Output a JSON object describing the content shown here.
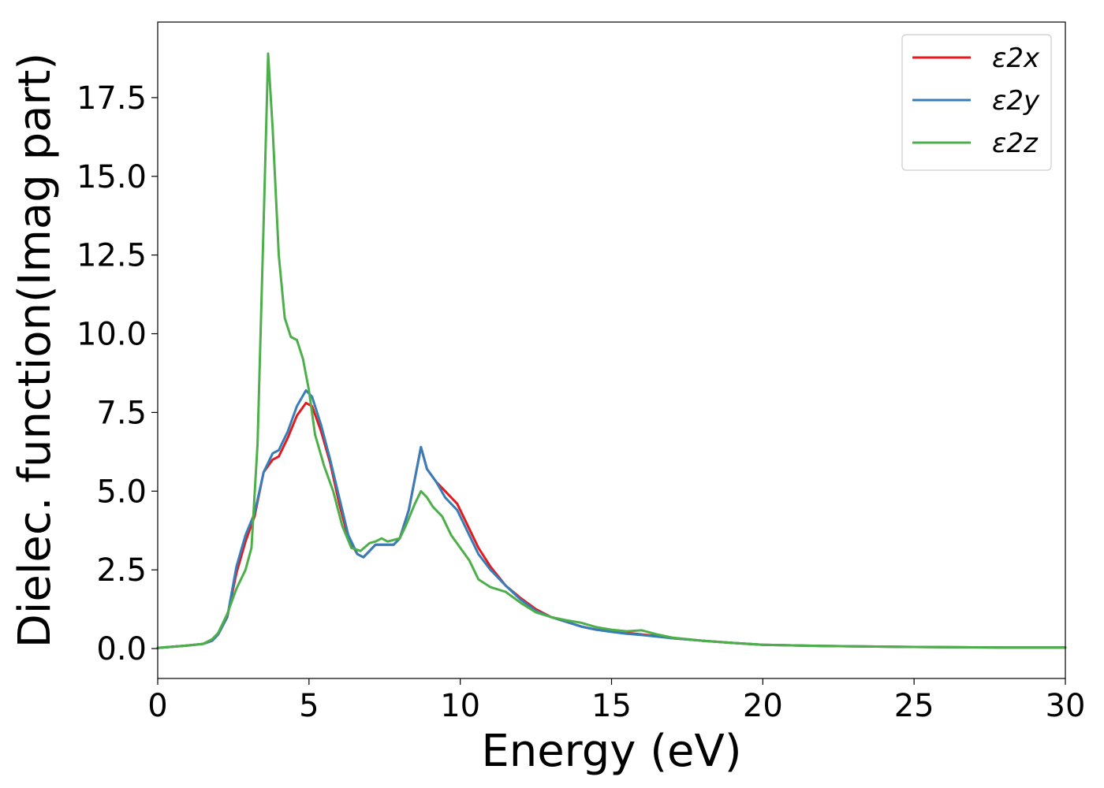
{
  "chart_data": {
    "type": "line",
    "xlabel": "Energy (eV)",
    "ylabel": "Dielec. function(Imag part)",
    "xlim": [
      0,
      30
    ],
    "ylim": [
      -0.95,
      19.9
    ],
    "xticks": [
      "0",
      "5",
      "10",
      "15",
      "20",
      "25",
      "30"
    ],
    "yticks": [
      "0.0",
      "2.5",
      "5.0",
      "7.5",
      "10.0",
      "12.5",
      "15.0",
      "17.5"
    ],
    "grid": false,
    "legend_position": "top-right",
    "series": [
      {
        "name": "ε2x",
        "color": "#e41a1c",
        "x": [
          0,
          1,
          1.5,
          1.8,
          2.0,
          2.3,
          2.6,
          2.9,
          3.2,
          3.5,
          3.8,
          4.0,
          4.3,
          4.6,
          4.9,
          5.1,
          5.4,
          5.7,
          6.0,
          6.3,
          6.6,
          6.8,
          7.0,
          7.2,
          7.5,
          7.8,
          8.0,
          8.3,
          8.6,
          8.7,
          8.9,
          9.2,
          9.5,
          9.9,
          10.2,
          10.6,
          11.0,
          11.5,
          12.0,
          12.5,
          13.0,
          13.5,
          14.0,
          14.5,
          15.0,
          15.5,
          16.0,
          16.5,
          17.0,
          18.0,
          19.0,
          20.0,
          22.0,
          25.0,
          28.0,
          30.0
        ],
        "y": [
          0.02,
          0.1,
          0.15,
          0.25,
          0.45,
          1.0,
          2.4,
          3.4,
          4.2,
          5.6,
          6.0,
          6.1,
          6.7,
          7.4,
          7.8,
          7.7,
          6.9,
          5.9,
          4.6,
          3.5,
          3.0,
          2.9,
          3.1,
          3.3,
          3.3,
          3.3,
          3.5,
          4.4,
          5.9,
          6.4,
          5.7,
          5.3,
          5.0,
          4.6,
          4.0,
          3.2,
          2.6,
          2.0,
          1.6,
          1.25,
          1.0,
          0.85,
          0.7,
          0.6,
          0.55,
          0.5,
          0.45,
          0.4,
          0.33,
          0.25,
          0.18,
          0.12,
          0.08,
          0.05,
          0.03,
          0.03
        ]
      },
      {
        "name": "ε2y",
        "color": "#377eb8",
        "x": [
          0,
          1,
          1.5,
          1.8,
          2.0,
          2.3,
          2.6,
          2.9,
          3.2,
          3.5,
          3.8,
          4.0,
          4.3,
          4.6,
          4.9,
          5.1,
          5.4,
          5.7,
          6.0,
          6.3,
          6.6,
          6.8,
          7.0,
          7.2,
          7.5,
          7.8,
          8.0,
          8.3,
          8.6,
          8.7,
          8.9,
          9.2,
          9.5,
          9.9,
          10.2,
          10.6,
          11.0,
          11.5,
          12.0,
          12.5,
          13.0,
          13.5,
          14.0,
          14.5,
          15.0,
          15.5,
          16.0,
          16.5,
          17.0,
          18.0,
          19.0,
          20.0,
          22.0,
          25.0,
          28.0,
          30.0
        ],
        "y": [
          0.02,
          0.1,
          0.15,
          0.25,
          0.45,
          1.0,
          2.6,
          3.6,
          4.3,
          5.6,
          6.2,
          6.3,
          6.9,
          7.7,
          8.2,
          8.0,
          7.1,
          6.0,
          4.8,
          3.6,
          3.0,
          2.9,
          3.1,
          3.3,
          3.3,
          3.3,
          3.5,
          4.4,
          5.9,
          6.4,
          5.7,
          5.3,
          4.8,
          4.4,
          3.8,
          3.0,
          2.5,
          2.0,
          1.55,
          1.2,
          1.0,
          0.85,
          0.7,
          0.6,
          0.53,
          0.47,
          0.43,
          0.38,
          0.33,
          0.25,
          0.18,
          0.12,
          0.08,
          0.05,
          0.03,
          0.03
        ]
      },
      {
        "name": "ε2z",
        "color": "#4daf4a",
        "x": [
          0,
          1,
          1.5,
          1.8,
          2.0,
          2.3,
          2.6,
          2.9,
          3.1,
          3.3,
          3.5,
          3.65,
          3.8,
          4.0,
          4.2,
          4.4,
          4.6,
          4.8,
          5.0,
          5.2,
          5.5,
          5.8,
          6.1,
          6.4,
          6.7,
          7.0,
          7.2,
          7.4,
          7.6,
          7.8,
          8.0,
          8.2,
          8.5,
          8.7,
          8.9,
          9.1,
          9.4,
          9.7,
          10.0,
          10.3,
          10.6,
          11.0,
          11.5,
          12.0,
          12.5,
          13.0,
          13.5,
          14.0,
          14.5,
          15.0,
          15.5,
          16.0,
          16.5,
          17.0,
          18.0,
          19.0,
          20.0,
          22.0,
          25.0,
          28.0,
          30.0
        ],
        "y": [
          0.02,
          0.1,
          0.15,
          0.3,
          0.5,
          1.1,
          1.9,
          2.5,
          3.2,
          6.5,
          13.5,
          18.9,
          16.5,
          12.5,
          10.5,
          9.9,
          9.8,
          9.2,
          8.2,
          6.8,
          5.8,
          5.0,
          3.9,
          3.2,
          3.1,
          3.35,
          3.4,
          3.5,
          3.4,
          3.45,
          3.5,
          3.9,
          4.6,
          5.0,
          4.8,
          4.5,
          4.2,
          3.6,
          3.2,
          2.8,
          2.2,
          1.95,
          1.8,
          1.45,
          1.15,
          1.0,
          0.9,
          0.82,
          0.68,
          0.6,
          0.55,
          0.58,
          0.45,
          0.35,
          0.25,
          0.18,
          0.12,
          0.08,
          0.05,
          0.03,
          0.03
        ]
      }
    ]
  }
}
